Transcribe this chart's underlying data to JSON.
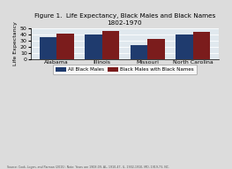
{
  "title": "Figure 1.  Life Expectancy, Black Males and Black Names",
  "subtitle": "1802-1970",
  "categories": [
    "Alabama",
    "Illinois",
    "Missouri",
    "North Carolina"
  ],
  "all_black_males": [
    35.5,
    39.5,
    22.5,
    40.5
  ],
  "black_names": [
    41.0,
    46.5,
    33.5,
    44.5
  ],
  "color_blue": "#1F3B6E",
  "color_red": "#7B1C1C",
  "ylabel": "Life Expectancy",
  "ylim": [
    0,
    50
  ],
  "yticks": [
    0,
    10,
    20,
    30,
    40,
    50
  ],
  "legend_labels": [
    "All Black Males",
    "Black Males with Black Names"
  ],
  "source_text": "Source: Cook, Logan, and Parman (2015). Note: Years are 1908-09, AL, 1910-47, IL, 1902-1910, MO, 1919-73, NC.",
  "background_color": "#DCDCDC",
  "plot_bg_color": "#E0E8EE"
}
